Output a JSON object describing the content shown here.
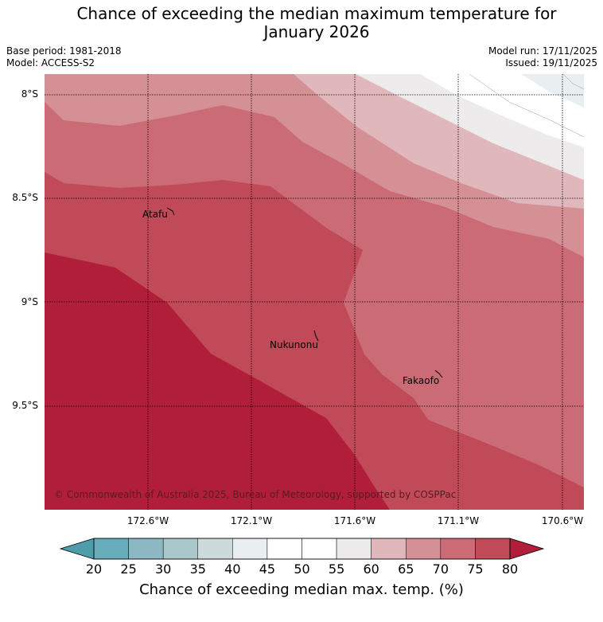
{
  "header": {
    "title_line1": "Chance of exceeding the median maximum temperature for",
    "title_line2": "January 2026",
    "base_period": "Base period: 1981-2018",
    "model": "Model: ACCESS-S2",
    "model_run": "Model run: 17/11/2025",
    "issued": "Issued: 19/11/2025"
  },
  "map": {
    "lat_labels": [
      "8°S",
      "8.5°S",
      "9°S",
      "9.5°S"
    ],
    "lon_labels": [
      "172.6°W",
      "172.1°W",
      "171.6°W",
      "171.1°W",
      "170.6°W"
    ],
    "places": [
      {
        "name": "Atafu"
      },
      {
        "name": "Nukunonu"
      },
      {
        "name": "Fakaofo"
      }
    ],
    "copyright": "© Commonwealth of Australia 2025, Bureau of Meteorology, supported by COSPPac",
    "contour_bands_percent": [
      {
        "range": "75-80+",
        "color": "#b11e3a"
      },
      {
        "range": "70-75",
        "color": "#c04a57"
      },
      {
        "range": "65-70",
        "color": "#cb6b75"
      },
      {
        "range": "60-65",
        "color": "#d59096"
      },
      {
        "range": "55-60",
        "color": "#e0b8bc"
      },
      {
        "range": "50-55",
        "color": "#edebec"
      },
      {
        "range": "45-50",
        "color": "#ffffff"
      },
      {
        "range": "40-45",
        "color": "#e9eff1"
      }
    ]
  },
  "colorbar": {
    "ticks": [
      "20",
      "25",
      "30",
      "35",
      "40",
      "45",
      "50",
      "55",
      "60",
      "65",
      "70",
      "75",
      "80"
    ],
    "colors": [
      "#67adbb",
      "#8cb8c3",
      "#aac7cc",
      "#ccdadb",
      "#e9eff1",
      "#ffffff",
      "#ffffff",
      "#edebec",
      "#e0b8bc",
      "#d59096",
      "#cb6b75",
      "#c04a57"
    ],
    "under_color": "#4e9dab",
    "over_color": "#b11e3a",
    "label": "Chance of exceeding median max. temp. (%)"
  }
}
